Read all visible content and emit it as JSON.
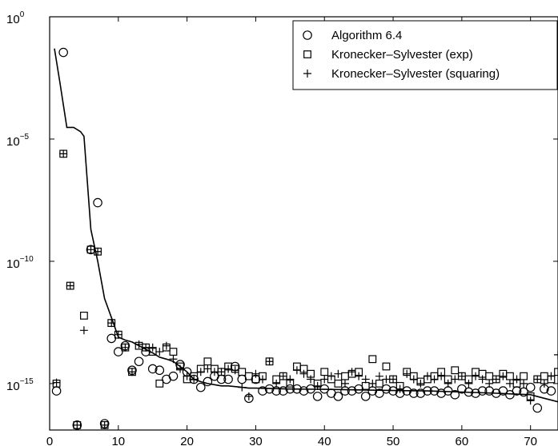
{
  "chart_data": {
    "type": "scatter",
    "title": "",
    "xlabel": "",
    "ylabel": "",
    "xlim": [
      0,
      74
    ],
    "y_log": true,
    "ylim_exponent": [
      -16.9,
      0
    ],
    "x_ticks": [
      0,
      10,
      20,
      30,
      40,
      50,
      60,
      70
    ],
    "y_ticks": [
      {
        "base": "10",
        "exp": "0",
        "value": 1
      },
      {
        "base": "10",
        "exp": "−5",
        "value": 1e-05
      },
      {
        "base": "10",
        "exp": "−10",
        "value": 1e-10
      },
      {
        "base": "10",
        "exp": "−15",
        "value": 1e-15
      }
    ],
    "grid": false,
    "legend_position": "top-right",
    "series": [
      {
        "name": "Algorithm 6.4",
        "marker": "circle",
        "points": [
          [
            1,
            5e-16
          ],
          [
            2,
            0.035
          ],
          [
            4,
            2e-17
          ],
          [
            6,
            3e-10
          ],
          [
            7,
            2.5e-08
          ],
          [
            8,
            2.3e-17
          ],
          [
            9,
            7e-14
          ],
          [
            10,
            2e-14
          ],
          [
            11,
            3.5e-14
          ],
          [
            12,
            3.5e-15
          ],
          [
            13,
            8e-15
          ],
          [
            14,
            2e-14
          ],
          [
            15,
            4e-15
          ],
          [
            16,
            3.5e-15
          ],
          [
            17,
            1.5e-15
          ],
          [
            18,
            2e-15
          ],
          [
            19,
            6e-15
          ],
          [
            20,
            3e-15
          ],
          [
            21,
            1.5e-15
          ],
          [
            22,
            7e-16
          ],
          [
            23,
            1.2e-15
          ],
          [
            24,
            2e-15
          ],
          [
            25,
            1.5e-15
          ],
          [
            26,
            1.5e-15
          ],
          [
            27,
            5e-15
          ],
          [
            28,
            1.5e-15
          ],
          [
            29,
            2.5e-16
          ],
          [
            30,
            1.5e-15
          ],
          [
            31,
            5e-16
          ],
          [
            32,
            6e-16
          ],
          [
            33,
            5e-16
          ],
          [
            34,
            5e-16
          ],
          [
            35,
            6e-16
          ],
          [
            36,
            6e-16
          ],
          [
            37,
            5e-16
          ],
          [
            38,
            6e-16
          ],
          [
            39,
            3e-16
          ],
          [
            40,
            6e-16
          ],
          [
            41,
            4e-16
          ],
          [
            42,
            3e-16
          ],
          [
            43,
            5e-16
          ],
          [
            44,
            5e-16
          ],
          [
            45,
            6e-16
          ],
          [
            46,
            3e-16
          ],
          [
            47,
            5e-16
          ],
          [
            48,
            4e-16
          ],
          [
            49,
            6e-16
          ],
          [
            50,
            5e-16
          ],
          [
            51,
            4e-16
          ],
          [
            52,
            5e-16
          ],
          [
            53,
            4e-16
          ],
          [
            54,
            4e-16
          ],
          [
            55,
            5e-16
          ],
          [
            56,
            5e-16
          ],
          [
            57,
            4e-16
          ],
          [
            58,
            5e-16
          ],
          [
            59,
            3.5e-16
          ],
          [
            60,
            6e-16
          ],
          [
            61,
            4.5e-16
          ],
          [
            62,
            4e-16
          ],
          [
            63,
            5e-16
          ],
          [
            64,
            5e-16
          ],
          [
            65,
            4e-16
          ],
          [
            66,
            5e-16
          ],
          [
            67,
            3.5e-16
          ],
          [
            68,
            5e-16
          ],
          [
            69,
            4.5e-16
          ],
          [
            70,
            7e-16
          ],
          [
            71,
            1e-16
          ],
          [
            72,
            6e-16
          ],
          [
            73,
            5e-16
          ]
        ]
      },
      {
        "name": "Kronecker–Sylvester (exp)",
        "marker": "square",
        "points": [
          [
            1,
            1e-15
          ],
          [
            2,
            2.5e-06
          ],
          [
            3,
            1e-11
          ],
          [
            4,
            2e-17
          ],
          [
            5,
            6e-13
          ],
          [
            6,
            3e-10
          ],
          [
            7,
            2.5e-10
          ],
          [
            8,
            2e-17
          ],
          [
            9,
            3e-13
          ],
          [
            10,
            1e-13
          ],
          [
            11,
            3e-14
          ],
          [
            12,
            3e-15
          ],
          [
            13,
            3.5e-14
          ],
          [
            14,
            3e-14
          ],
          [
            15,
            2e-14
          ],
          [
            16,
            1e-15
          ],
          [
            17,
            3e-14
          ],
          [
            18,
            2e-14
          ],
          [
            19,
            5e-15
          ],
          [
            20,
            1.5e-15
          ],
          [
            21,
            2e-15
          ],
          [
            22,
            4e-15
          ],
          [
            23,
            8e-15
          ],
          [
            24,
            4e-15
          ],
          [
            25,
            3e-15
          ],
          [
            26,
            5e-15
          ],
          [
            27,
            4e-15
          ],
          [
            28,
            3e-15
          ],
          [
            29,
            2e-15
          ],
          [
            30,
            1.5e-15
          ],
          [
            31,
            2e-15
          ],
          [
            32,
            8e-15
          ],
          [
            33,
            1.5e-15
          ],
          [
            34,
            2e-15
          ],
          [
            35,
            1e-15
          ],
          [
            36,
            5e-15
          ],
          [
            37,
            4e-15
          ],
          [
            38,
            2.5e-15
          ],
          [
            39,
            1e-15
          ],
          [
            40,
            3e-15
          ],
          [
            41,
            1.5e-15
          ],
          [
            42,
            1e-15
          ],
          [
            43,
            2e-15
          ],
          [
            44,
            2.5e-15
          ],
          [
            45,
            3e-15
          ],
          [
            46,
            8e-16
          ],
          [
            47,
            1e-14
          ],
          [
            48,
            1e-15
          ],
          [
            49,
            5e-15
          ],
          [
            50,
            1.5e-15
          ],
          [
            51,
            8e-16
          ],
          [
            52,
            3e-15
          ],
          [
            53,
            2e-15
          ],
          [
            54,
            1.2e-15
          ],
          [
            55,
            1.5e-15
          ],
          [
            56,
            2e-15
          ],
          [
            57,
            3e-15
          ],
          [
            58,
            1.5e-15
          ],
          [
            59,
            3.5e-15
          ],
          [
            60,
            2e-15
          ],
          [
            61,
            1.5e-15
          ],
          [
            62,
            3e-15
          ],
          [
            63,
            2.5e-15
          ],
          [
            64,
            2e-15
          ],
          [
            65,
            1.5e-15
          ],
          [
            66,
            2.5e-15
          ],
          [
            67,
            2e-15
          ],
          [
            68,
            1e-15
          ],
          [
            69,
            2e-15
          ],
          [
            70,
            3e-16
          ],
          [
            71,
            1.5e-15
          ],
          [
            72,
            2e-15
          ],
          [
            73,
            1.5e-15
          ],
          [
            74,
            3e-15
          ]
        ]
      },
      {
        "name": "Kronecker–Sylvester (squaring)",
        "marker": "plus",
        "points": [
          [
            1,
            1.1e-15
          ],
          [
            2,
            2.5e-06
          ],
          [
            3,
            1e-11
          ],
          [
            4,
            2e-17
          ],
          [
            5,
            1.5e-13
          ],
          [
            6,
            3e-10
          ],
          [
            7,
            2.5e-10
          ],
          [
            8,
            2e-17
          ],
          [
            9,
            3e-13
          ],
          [
            10,
            1e-13
          ],
          [
            11,
            3e-14
          ],
          [
            12,
            3e-15
          ],
          [
            13,
            4e-14
          ],
          [
            14,
            3e-14
          ],
          [
            15,
            3e-14
          ],
          [
            16,
            2e-14
          ],
          [
            17,
            3.5e-14
          ],
          [
            18,
            1e-14
          ],
          [
            19,
            4e-15
          ],
          [
            20,
            2e-15
          ],
          [
            21,
            1.5e-15
          ],
          [
            22,
            3e-15
          ],
          [
            23,
            4e-15
          ],
          [
            24,
            3e-15
          ],
          [
            25,
            3e-15
          ],
          [
            26,
            4e-15
          ],
          [
            27,
            3.5e-15
          ],
          [
            28,
            7e-16
          ],
          [
            29,
            3e-16
          ],
          [
            30,
            2.5e-15
          ],
          [
            31,
            1.5e-15
          ],
          [
            32,
            8e-15
          ],
          [
            33,
            1e-15
          ],
          [
            34,
            2e-15
          ],
          [
            35,
            1.5e-15
          ],
          [
            36,
            3.5e-15
          ],
          [
            37,
            2.5e-15
          ],
          [
            38,
            1.5e-15
          ],
          [
            39,
            8e-16
          ],
          [
            40,
            1.5e-15
          ],
          [
            41,
            2e-15
          ],
          [
            42,
            2.5e-15
          ],
          [
            43,
            1e-15
          ],
          [
            44,
            3e-15
          ],
          [
            45,
            2e-15
          ],
          [
            46,
            1.5e-15
          ],
          [
            47,
            1e-15
          ],
          [
            48,
            2e-15
          ],
          [
            49,
            1.5e-15
          ],
          [
            50,
            1.5e-15
          ],
          [
            51,
            6e-16
          ],
          [
            52,
            2.5e-15
          ],
          [
            53,
            1.5e-15
          ],
          [
            54,
            1e-15
          ],
          [
            55,
            2e-15
          ],
          [
            56,
            1.5e-15
          ],
          [
            57,
            2e-15
          ],
          [
            58,
            1e-15
          ],
          [
            59,
            1.5e-15
          ],
          [
            60,
            2e-15
          ],
          [
            61,
            1e-15
          ],
          [
            62,
            2e-15
          ],
          [
            63,
            1.5e-15
          ],
          [
            64,
            1e-15
          ],
          [
            65,
            1.5e-15
          ],
          [
            66,
            2e-15
          ],
          [
            67,
            1e-15
          ],
          [
            68,
            1.5e-15
          ],
          [
            69,
            1e-15
          ],
          [
            70,
            2e-16
          ],
          [
            71,
            1.5e-15
          ],
          [
            72,
            1e-15
          ],
          [
            73,
            2e-15
          ],
          [
            74,
            1.5e-14
          ]
        ]
      }
    ],
    "line": {
      "style": "solid",
      "points": [
        [
          0.7,
          0.05
        ],
        [
          1.5,
          0.002
        ],
        [
          2.5,
          3e-05
        ],
        [
          3.5,
          3e-05
        ],
        [
          4.5,
          2e-05
        ],
        [
          5,
          1.3e-05
        ],
        [
          6,
          2e-09
        ],
        [
          7,
          1e-10
        ],
        [
          8,
          3e-12
        ],
        [
          9,
          5e-13
        ],
        [
          10,
          8e-14
        ],
        [
          11,
          6e-14
        ],
        [
          12,
          5e-14
        ],
        [
          13,
          3.5e-14
        ],
        [
          14,
          2.5e-14
        ],
        [
          15,
          1.8e-14
        ],
        [
          16,
          1.2e-14
        ],
        [
          17,
          1e-14
        ],
        [
          18,
          8e-15
        ],
        [
          19,
          5e-15
        ],
        [
          20,
          3e-15
        ],
        [
          21,
          1.5e-15
        ],
        [
          22,
          1.2e-15
        ],
        [
          23,
          1e-15
        ],
        [
          24,
          9e-16
        ],
        [
          25,
          8e-16
        ],
        [
          26,
          8e-16
        ],
        [
          27,
          7.5e-16
        ],
        [
          28,
          7e-16
        ],
        [
          29,
          6.5e-16
        ],
        [
          30,
          6.5e-16
        ],
        [
          35,
          6e-16
        ],
        [
          40,
          5.8e-16
        ],
        [
          45,
          5.5e-16
        ],
        [
          50,
          5.2e-16
        ],
        [
          55,
          5e-16
        ],
        [
          60,
          4.5e-16
        ],
        [
          65,
          4e-16
        ],
        [
          70,
          3.5e-16
        ],
        [
          72,
          2.5e-16
        ],
        [
          74,
          1.8e-16
        ]
      ]
    }
  }
}
